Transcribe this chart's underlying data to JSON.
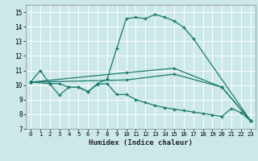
{
  "title": "",
  "xlabel": "Humidex (Indice chaleur)",
  "xlim": [
    -0.5,
    23.5
  ],
  "ylim": [
    7,
    15.5
  ],
  "yticks": [
    7,
    8,
    9,
    10,
    11,
    12,
    13,
    14,
    15
  ],
  "xticks": [
    0,
    1,
    2,
    3,
    4,
    5,
    6,
    7,
    8,
    9,
    10,
    11,
    12,
    13,
    14,
    15,
    16,
    17,
    18,
    19,
    20,
    21,
    22,
    23
  ],
  "bg_color": "#cce8e8",
  "grid_color": "#ffffff",
  "line_color": "#1a7a6e",
  "curve1_x": [
    0,
    1,
    2,
    3,
    4,
    5,
    6,
    7,
    8,
    9,
    10,
    11,
    12,
    13,
    14,
    15,
    16,
    17,
    23
  ],
  "curve1_y": [
    10.2,
    11.0,
    10.1,
    10.1,
    9.85,
    9.85,
    9.55,
    10.1,
    10.4,
    12.5,
    14.55,
    14.65,
    14.55,
    14.85,
    14.65,
    14.4,
    13.95,
    13.2,
    7.55
  ],
  "curve2_x": [
    0,
    2,
    3,
    4,
    5,
    6,
    7,
    8,
    9,
    10,
    11,
    12,
    13,
    14,
    15,
    16,
    17,
    18,
    19,
    20,
    21,
    22,
    23
  ],
  "curve2_y": [
    10.2,
    10.1,
    9.3,
    9.85,
    9.85,
    9.55,
    10.05,
    10.1,
    9.35,
    9.35,
    9.0,
    8.8,
    8.6,
    8.45,
    8.35,
    8.25,
    8.15,
    8.05,
    7.95,
    7.85,
    8.4,
    8.1,
    7.55
  ],
  "curve3_x": [
    0,
    10,
    15,
    20,
    23
  ],
  "curve3_y": [
    10.2,
    10.85,
    11.15,
    9.85,
    7.55
  ],
  "curve4_x": [
    0,
    10,
    15,
    20,
    23
  ],
  "curve4_y": [
    10.2,
    10.35,
    10.75,
    9.85,
    7.55
  ],
  "marker": "+",
  "ms": 3,
  "lw": 0.9
}
